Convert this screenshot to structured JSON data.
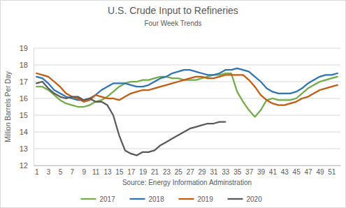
{
  "chart_data": {
    "type": "line",
    "title": "U.S. Crude Input to Refineries",
    "subtitle": "Four Week Trends",
    "y_label": "Million Barrels Per Day",
    "x_label": "Source: Energy Information Adminstration",
    "x": [
      1,
      2,
      3,
      4,
      5,
      6,
      7,
      8,
      9,
      10,
      11,
      12,
      13,
      14,
      15,
      16,
      17,
      18,
      19,
      20,
      21,
      22,
      23,
      24,
      25,
      26,
      27,
      28,
      29,
      30,
      31,
      32,
      33,
      34,
      35,
      36,
      37,
      38,
      39,
      40,
      41,
      42,
      43,
      44,
      45,
      46,
      47,
      48,
      49,
      50,
      51,
      52
    ],
    "series": [
      {
        "name": "2017",
        "color": "#70ad47",
        "values": [
          16.7,
          16.7,
          16.5,
          16.2,
          15.9,
          15.7,
          15.6,
          15.5,
          15.5,
          15.6,
          15.8,
          15.9,
          16.1,
          16.4,
          16.7,
          16.9,
          17.0,
          17.0,
          17.1,
          17.1,
          17.2,
          17.3,
          17.3,
          17.2,
          17.2,
          17.1,
          17.1,
          17.1,
          17.2,
          17.3,
          17.4,
          17.4,
          17.5,
          17.5,
          16.4,
          15.8,
          15.3,
          14.9,
          15.3,
          15.9,
          16.0,
          15.9,
          15.9,
          15.9,
          16.0,
          16.3,
          16.6,
          16.8,
          17.0,
          17.1,
          17.2,
          17.3
        ]
      },
      {
        "name": "2018",
        "color": "#2e75b6",
        "values": [
          17.3,
          17.2,
          16.9,
          16.5,
          16.3,
          16.1,
          16.0,
          15.9,
          15.9,
          16.0,
          16.2,
          16.5,
          16.7,
          16.9,
          16.9,
          16.9,
          16.8,
          16.7,
          16.7,
          16.8,
          17.0,
          17.2,
          17.3,
          17.5,
          17.6,
          17.7,
          17.7,
          17.6,
          17.5,
          17.4,
          17.4,
          17.5,
          17.7,
          17.7,
          17.8,
          17.7,
          17.6,
          17.3,
          17.0,
          16.6,
          16.4,
          16.3,
          16.3,
          16.3,
          16.4,
          16.6,
          16.9,
          17.1,
          17.3,
          17.4,
          17.4,
          17.5
        ]
      },
      {
        "name": "2019",
        "color": "#c55a11",
        "values": [
          17.5,
          17.4,
          17.3,
          17.0,
          16.7,
          16.3,
          16.1,
          16.0,
          15.8,
          15.9,
          16.2,
          16.1,
          16.0,
          16.0,
          15.9,
          16.1,
          16.3,
          16.4,
          16.5,
          16.5,
          16.6,
          16.7,
          16.8,
          16.9,
          17.0,
          17.1,
          17.2,
          17.3,
          17.3,
          17.2,
          17.2,
          17.3,
          17.4,
          17.4,
          17.4,
          17.4,
          17.1,
          16.7,
          16.2,
          15.9,
          15.7,
          15.6,
          15.6,
          15.7,
          15.8,
          16.0,
          16.1,
          16.3,
          16.5,
          16.6,
          16.7,
          16.8
        ]
      },
      {
        "name": "2020",
        "color": "#595959",
        "values": [
          16.9,
          17.0,
          16.6,
          16.3,
          16.1,
          16.0,
          16.1,
          16.1,
          15.9,
          16.0,
          15.8,
          15.8,
          15.6,
          15.0,
          13.8,
          12.9,
          12.7,
          12.6,
          12.8,
          12.8,
          12.9,
          13.2,
          13.4,
          13.6,
          13.8,
          14.0,
          14.2,
          14.3,
          14.4,
          14.5,
          14.5,
          14.6,
          14.6,
          null,
          null,
          null,
          null,
          null,
          null,
          null,
          null,
          null,
          null,
          null,
          null,
          null,
          null,
          null,
          null,
          null,
          null,
          null
        ]
      }
    ],
    "xlim": [
      0.5,
      52.5
    ],
    "ylim": [
      12,
      19
    ],
    "xticks": [
      1,
      3,
      5,
      7,
      9,
      11,
      13,
      15,
      17,
      19,
      21,
      23,
      25,
      27,
      29,
      31,
      33,
      35,
      37,
      39,
      41,
      43,
      45,
      47,
      49,
      51
    ],
    "yticks": [
      12,
      13,
      14,
      15,
      16,
      17,
      18,
      19
    ],
    "grid": true,
    "legend": "bottom"
  }
}
